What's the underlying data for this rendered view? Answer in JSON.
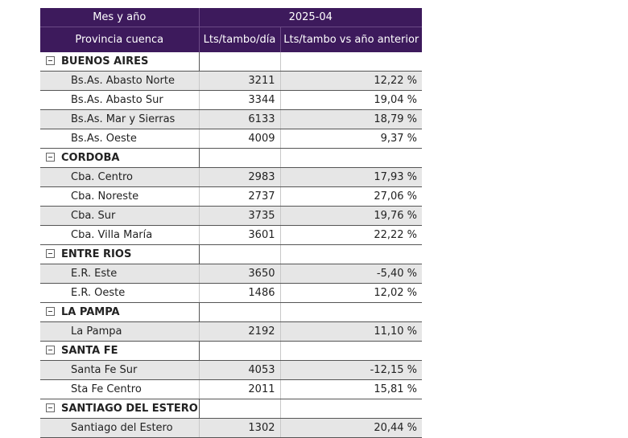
{
  "header": {
    "row1_label": "Mes y año",
    "row1_period": "2025-04",
    "col_province": "Provincia cuenca",
    "col_lts": "Lts/tambo/día",
    "col_vs": "Lts/tambo vs año anterior"
  },
  "groups": [
    {
      "name": "BUENOS AIRES",
      "rows": [
        {
          "label": "Bs.As. Abasto Norte",
          "lts": "3211",
          "vs": "12,22 %"
        },
        {
          "label": "Bs.As. Abasto Sur",
          "lts": "3344",
          "vs": "19,04 %"
        },
        {
          "label": "Bs.As. Mar y Sierras",
          "lts": "6133",
          "vs": "18,79 %"
        },
        {
          "label": "Bs.As. Oeste",
          "lts": "4009",
          "vs": "9,37 %"
        }
      ]
    },
    {
      "name": "CORDOBA",
      "rows": [
        {
          "label": "Cba. Centro",
          "lts": "2983",
          "vs": "17,93 %"
        },
        {
          "label": "Cba. Noreste",
          "lts": "2737",
          "vs": "27,06 %"
        },
        {
          "label": "Cba. Sur",
          "lts": "3735",
          "vs": "19,76 %"
        },
        {
          "label": "Cba. Villa María",
          "lts": "3601",
          "vs": "22,22 %"
        }
      ]
    },
    {
      "name": "ENTRE RIOS",
      "rows": [
        {
          "label": "E.R. Este",
          "lts": "3650",
          "vs": "-5,40 %"
        },
        {
          "label": "E.R. Oeste",
          "lts": "1486",
          "vs": "12,02 %"
        }
      ]
    },
    {
      "name": "LA PAMPA",
      "rows": [
        {
          "label": "La Pampa",
          "lts": "2192",
          "vs": "11,10 %"
        }
      ]
    },
    {
      "name": "SANTA FE",
      "rows": [
        {
          "label": "Santa Fe Sur",
          "lts": "4053",
          "vs": "-12,15 %"
        },
        {
          "label": "Sta Fe Centro",
          "lts": "2011",
          "vs": "15,81 %"
        }
      ]
    },
    {
      "name": "SANTIAGO DEL ESTERO",
      "rows": [
        {
          "label": "Santiago del Estero",
          "lts": "1302",
          "vs": "20,44 %"
        }
      ]
    }
  ]
}
